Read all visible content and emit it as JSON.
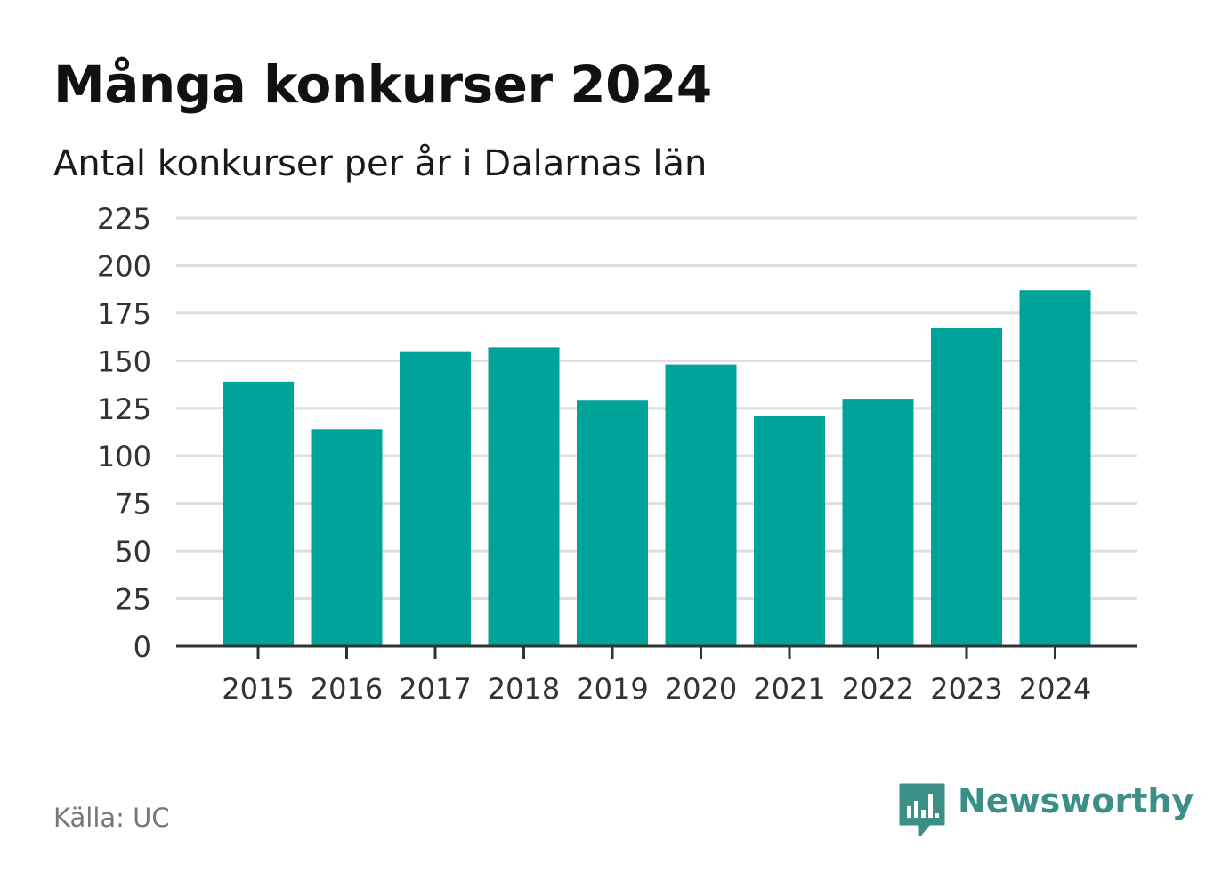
{
  "title": "Många konkurser 2024",
  "subtitle": "Antal konkurser per år i Dalarnas län",
  "source": "Källa: UC",
  "brand": {
    "name": "Newsworthy",
    "icon": "newsworthy-logo-icon"
  },
  "colors": {
    "bar": "#00a39a",
    "grid": "#dddddd",
    "axis": "#333333",
    "brand": "#3b8f86"
  },
  "chart_data": {
    "type": "bar",
    "categories": [
      "2015",
      "2016",
      "2017",
      "2018",
      "2019",
      "2020",
      "2021",
      "2022",
      "2023",
      "2024"
    ],
    "values": [
      139,
      114,
      155,
      157,
      129,
      148,
      121,
      130,
      167,
      187
    ],
    "title": "Många konkurser 2024",
    "subtitle": "Antal konkurser per år i Dalarnas län",
    "xlabel": "",
    "ylabel": "",
    "ylim": [
      0,
      225
    ],
    "yticks": [
      "0",
      "25",
      "50",
      "75",
      "100",
      "125",
      "150",
      "175",
      "200",
      "225"
    ],
    "grid": true
  }
}
